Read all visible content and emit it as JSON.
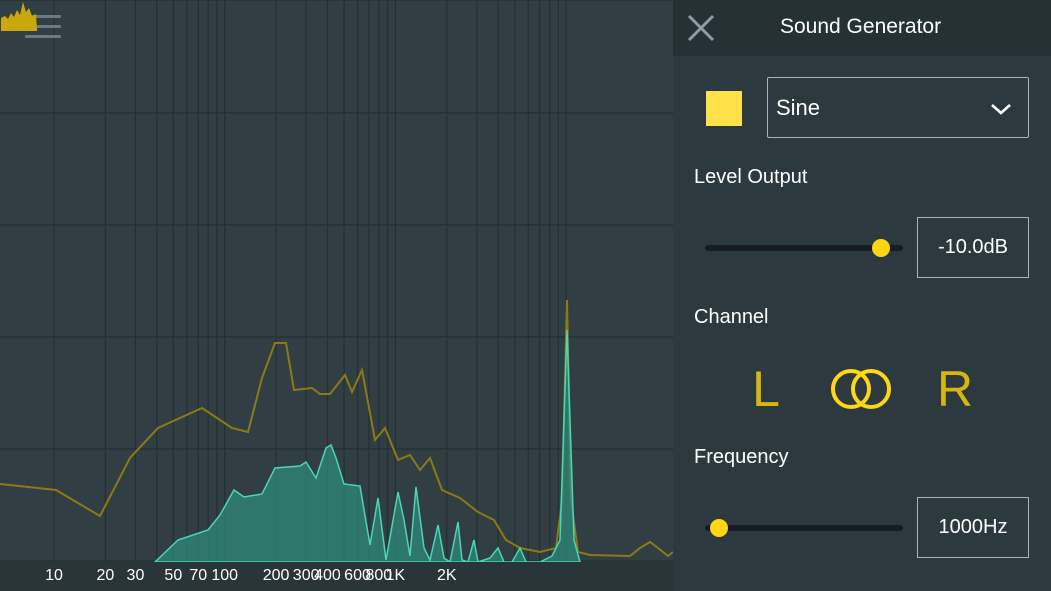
{
  "analyzer": {
    "menu_icon": "hamburger-menu-icon",
    "logo_icon": "spectrum-logo-icon",
    "colors": {
      "background": "#313e43",
      "grid": "#24302f",
      "peak_line": "#8c7a16",
      "spectrum_fill": "#2f8f7e",
      "spectrum_line": "#4ad6b8"
    },
    "freq_labels": [
      "10",
      "20",
      "30",
      "50",
      "70",
      "100",
      "200",
      "300",
      "400",
      "600",
      "800",
      "1K",
      "2K"
    ]
  },
  "panel": {
    "title": "Sound Generator",
    "close_icon": "close-icon",
    "waveform": {
      "swatch_color": "#ffe14a",
      "selected": "Sine"
    },
    "level": {
      "label": "Level Output",
      "value_text": "-10.0dB",
      "slider_fraction": 0.89
    },
    "channel": {
      "label": "Channel",
      "left": "L",
      "right": "R",
      "both_icon": "stereo-rings-icon",
      "accent": "#d8b610"
    },
    "frequency": {
      "label": "Frequency",
      "value_text": "1000Hz",
      "slider_fraction": 0.07
    }
  }
}
